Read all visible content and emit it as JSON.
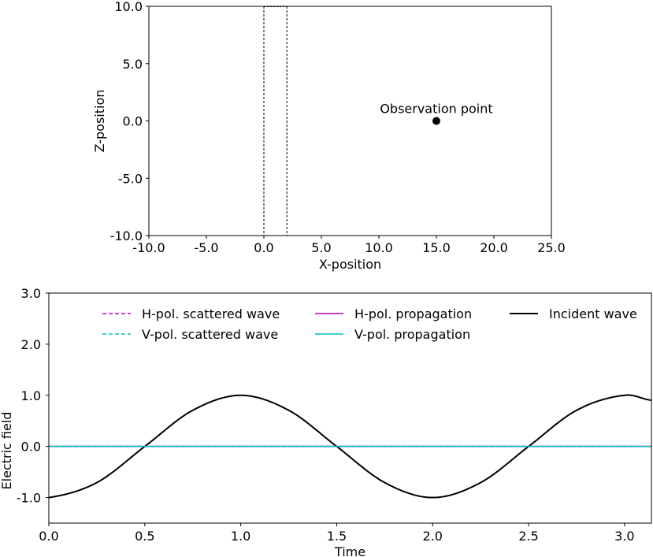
{
  "chart_data": [
    {
      "type": "scatter",
      "xlabel": "X-position",
      "ylabel": "Z-position",
      "xlim": [
        -10,
        25
      ],
      "ylim": [
        -10,
        10
      ],
      "xticks": [
        "-10.0",
        "-5.0",
        "0.0",
        "5.0",
        "10.0",
        "15.0",
        "20.0",
        "25.0"
      ],
      "yticks": [
        "-10.0",
        "-5.0",
        "0.0",
        "5.0",
        "10.0"
      ],
      "xtick_values": [
        -10,
        -5,
        0,
        5,
        10,
        15,
        20,
        25
      ],
      "ytick_values": [
        -10,
        -5,
        0,
        5,
        10
      ],
      "region": {
        "x": [
          0,
          2
        ],
        "z": [
          -10,
          10
        ],
        "style": "dashed"
      },
      "points": [
        {
          "x": 15,
          "z": 0,
          "label": "Observation point"
        }
      ]
    },
    {
      "type": "line",
      "xlabel": "Time",
      "ylabel": "Electric field",
      "xlim": [
        0,
        3.14
      ],
      "ylim": [
        -1.5,
        3.0
      ],
      "xticks": [
        "0.0",
        "0.5",
        "1.0",
        "1.5",
        "2.0",
        "2.5",
        "3.0"
      ],
      "yticks": [
        "-1.0",
        "0.0",
        "1.0",
        "2.0",
        "3.0"
      ],
      "xtick_values": [
        0,
        0.5,
        1.0,
        1.5,
        2.0,
        2.5,
        3.0
      ],
      "ytick_values": [
        -1,
        0,
        1,
        2,
        3
      ],
      "legend_position": "top",
      "series": [
        {
          "name": "H-pol. scattered wave",
          "color": "#c000c0",
          "style": "dashed",
          "x": [
            0,
            3.14
          ],
          "y": [
            0,
            0
          ]
        },
        {
          "name": "V-pol. scattered wave",
          "color": "#00bfbf",
          "style": "dashed",
          "x": [
            0,
            3.14
          ],
          "y": [
            0,
            0
          ]
        },
        {
          "name": "H-pol. propagation",
          "color": "#c000c0",
          "style": "solid",
          "x": [
            0,
            3.14
          ],
          "y": [
            0,
            0
          ]
        },
        {
          "name": "V-pol. propagation",
          "color": "#00bfbf",
          "style": "solid",
          "x": [
            0,
            3.14
          ],
          "y": [
            0,
            0
          ]
        },
        {
          "name": "Incident wave",
          "color": "#000000",
          "style": "solid",
          "x": [
            0,
            0.25,
            0.5,
            0.75,
            1.0,
            1.25,
            1.5,
            1.75,
            2.0,
            2.25,
            2.5,
            2.75,
            3.0,
            3.14
          ],
          "y": [
            -1,
            -0.707,
            0,
            0.707,
            1,
            0.707,
            0,
            -0.707,
            -1,
            -0.707,
            0,
            0.707,
            1,
            0.904
          ]
        }
      ]
    }
  ]
}
